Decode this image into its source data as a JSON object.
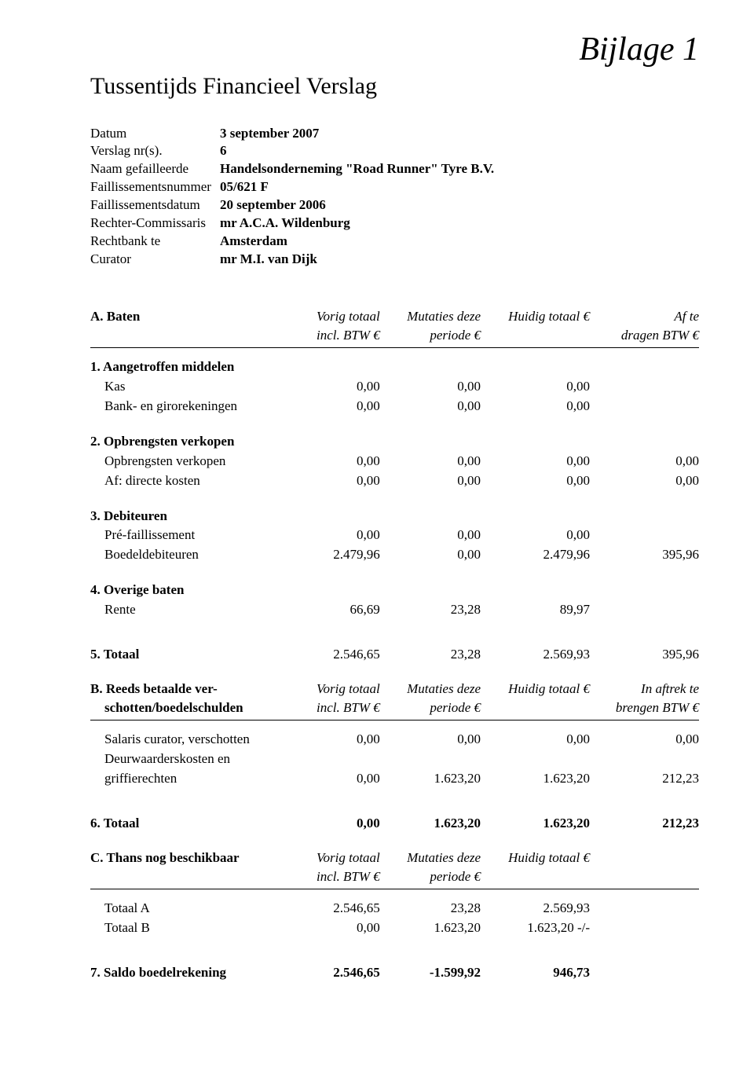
{
  "annotation": "Bijlage 1",
  "title": "Tussentijds Financieel Verslag",
  "meta": [
    {
      "label": "Datum",
      "value": "3 september 2007"
    },
    {
      "label": "Verslag nr(s).",
      "value": "6"
    },
    {
      "label": "Naam gefailleerde",
      "value": "Handelsonderneming \"Road Runner\" Tyre B.V."
    },
    {
      "label": "Faillissementsnummer",
      "value": "05/621 F"
    },
    {
      "label": "Faillissementsdatum",
      "value": "20 september 2006"
    },
    {
      "label": "Rechter-Commissaris",
      "value": "mr A.C.A. Wildenburg"
    },
    {
      "label": "Rechtbank te",
      "value": "Amsterdam"
    },
    {
      "label": "Curator",
      "value": "mr M.I. van Dijk"
    }
  ],
  "colhead": {
    "c1a": "Vorig totaal",
    "c1b": "incl. BTW €",
    "c2a": "Mutaties deze",
    "c2b": "periode €",
    "c3a": "Huidig totaal €",
    "c4a_A": "Af te",
    "c4b_A": "dragen BTW €",
    "c4a_B": "In aftrek te",
    "c4b_B": "brengen BTW €"
  },
  "sectA": {
    "title": "A. Baten",
    "g1": {
      "title": "1. Aangetroffen middelen",
      "rows": [
        {
          "label": "Kas",
          "v1": "0,00",
          "v2": "0,00",
          "v3": "0,00",
          "v4": ""
        },
        {
          "label": "Bank- en girorekeningen",
          "v1": "0,00",
          "v2": "0,00",
          "v3": "0,00",
          "v4": ""
        }
      ]
    },
    "g2": {
      "title": "2. Opbrengsten verkopen",
      "rows": [
        {
          "label": "Opbrengsten verkopen",
          "v1": "0,00",
          "v2": "0,00",
          "v3": "0,00",
          "v4": "0,00"
        },
        {
          "label": "Af: directe kosten",
          "v1": "0,00",
          "v2": "0,00",
          "v3": "0,00",
          "v4": "0,00"
        }
      ]
    },
    "g3": {
      "title": "3. Debiteuren",
      "rows": [
        {
          "label": "Pré-faillissement",
          "v1": "0,00",
          "v2": "0,00",
          "v3": "0,00",
          "v4": ""
        },
        {
          "label": "Boedeldebiteuren",
          "v1": "2.479,96",
          "v2": "0,00",
          "v3": "2.479,96",
          "v4": "395,96"
        }
      ]
    },
    "g4": {
      "title": "4. Overige baten",
      "rows": [
        {
          "label": "Rente",
          "v1": "66,69",
          "v2": "23,28",
          "v3": "89,97",
          "v4": ""
        }
      ]
    },
    "g5": {
      "title": "5. Totaal",
      "v1": "2.546,65",
      "v2": "23,28",
      "v3": "2.569,93",
      "v4": "395,96"
    }
  },
  "sectB": {
    "title1": "B. Reeds betaalde ver-",
    "title2": "schotten/boedelschulden",
    "rows": [
      {
        "label": "Salaris curator, verschotten",
        "v1": "0,00",
        "v2": "0,00",
        "v3": "0,00",
        "v4": "0,00"
      },
      {
        "label": "Deurwaarderskosten en",
        "v1": "",
        "v2": "",
        "v3": "",
        "v4": ""
      },
      {
        "label": "griffierechten",
        "v1": "0,00",
        "v2": "1.623,20",
        "v3": "1.623,20",
        "v4": "212,23"
      }
    ],
    "g6": {
      "title": "6. Totaal",
      "v1": "0,00",
      "v2": "1.623,20",
      "v3": "1.623,20",
      "v4": "212,23"
    }
  },
  "sectC": {
    "title": "C. Thans nog beschikbaar",
    "rows": [
      {
        "label": "Totaal A",
        "v1": "2.546,65",
        "v2": "23,28",
        "v3": "2.569,93",
        "v4": ""
      },
      {
        "label": "Totaal B",
        "v1": "0,00",
        "v2": "1.623,20",
        "v3": "1.623,20 -/-",
        "v4": ""
      }
    ],
    "g7": {
      "title": "7. Saldo boedelrekening",
      "v1": "2.546,65",
      "v2": "-1.599,92",
      "v3": "946,73",
      "v4": ""
    }
  }
}
